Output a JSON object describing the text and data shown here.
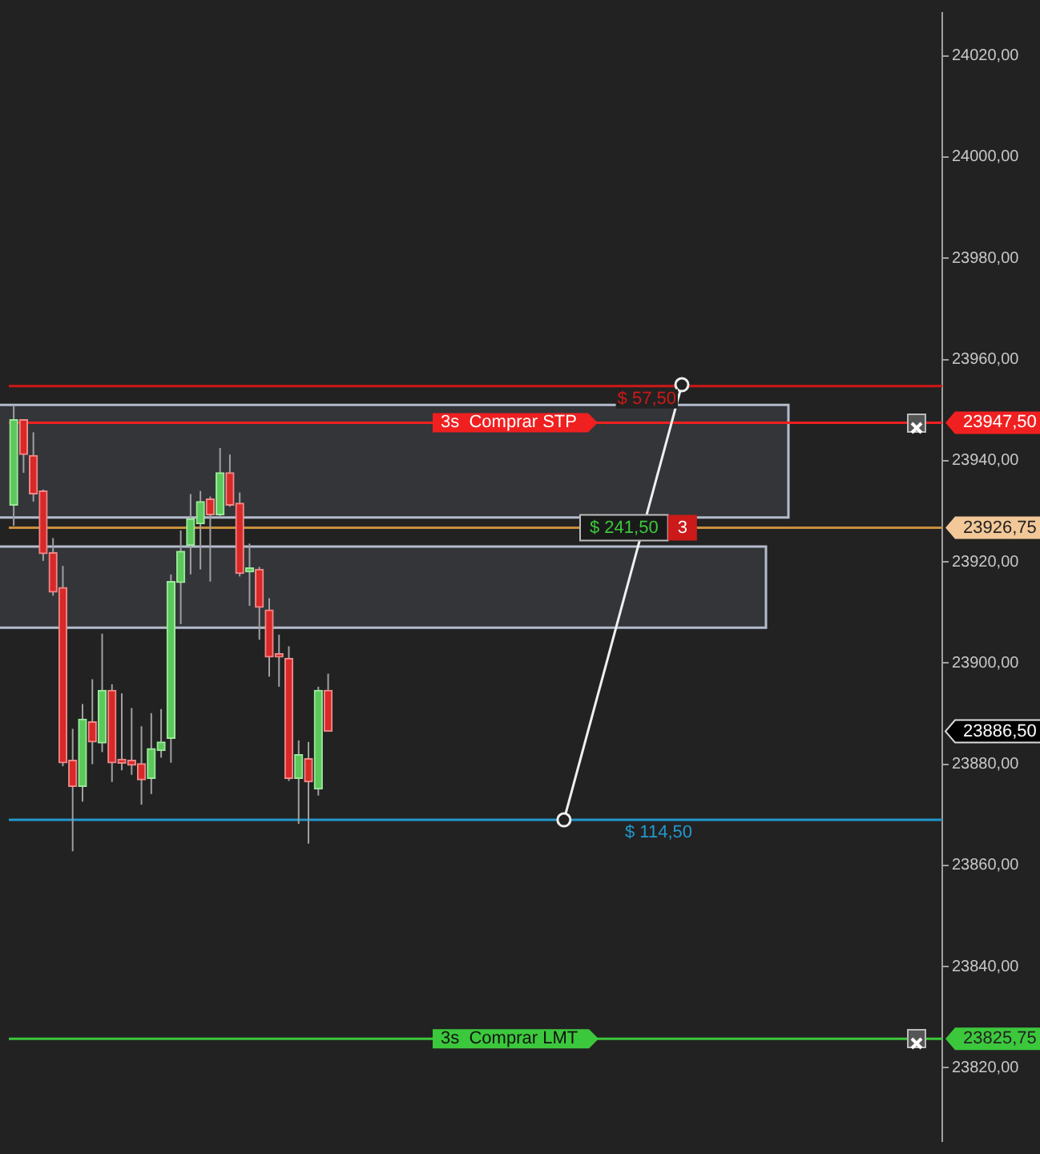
{
  "chart_data": {
    "type": "candlestick",
    "categories": [
      null,
      null,
      null,
      null,
      null,
      null,
      null,
      null,
      null,
      null,
      null,
      null,
      null,
      null,
      null,
      null,
      null,
      null,
      null,
      null,
      null,
      null,
      null,
      null,
      null,
      null,
      null,
      null,
      null,
      null,
      null,
      null,
      null,
      null,
      null,
      null,
      null,
      null,
      null,
      null,
      null,
      null,
      null,
      null,
      null,
      null,
      null,
      null,
      null,
      null,
      null,
      null,
      null,
      null,
      null,
      null,
      null,
      null,
      null,
      null,
      null,
      null,
      null,
      null,
      null,
      null,
      null,
      null,
      null,
      null,
      null,
      null,
      null,
      null,
      null,
      null,
      null,
      null,
      null,
      null,
      null,
      null,
      null,
      null,
      null,
      null,
      null,
      null,
      null,
      null,
      null,
      null,
      null,
      null,
      null
    ],
    "ohlc": [
      [
        23931.2,
        23951.0,
        23927.1,
        23948.1
      ],
      [
        23948.1,
        23948.1,
        23937.6,
        23941.2
      ],
      [
        23941.0,
        23945.6,
        23931.9,
        23933.4
      ],
      [
        23934.0,
        23934.3,
        23920.2,
        23921.6
      ],
      [
        23921.8,
        23924.7,
        23913.3,
        23914.0
      ],
      [
        23914.9,
        23919.2,
        23879.6,
        23880.3
      ],
      [
        23880.8,
        23887.0,
        23862.8,
        23875.6
      ],
      [
        23875.6,
        23891.9,
        23872.6,
        23888.9
      ],
      [
        23888.4,
        23896.8,
        23880.0,
        23884.4
      ],
      [
        23884.2,
        23905.8,
        23882.4,
        23894.6
      ],
      [
        23894.6,
        23895.8,
        23876.5,
        23880.3
      ],
      [
        23881.0,
        23894.0,
        23878.8,
        23880.2
      ],
      [
        23880.8,
        23891.1,
        23877.9,
        23879.8
      ],
      [
        23880.1,
        23887.5,
        23872.0,
        23876.9
      ],
      [
        23877.2,
        23890.1,
        23874.1,
        23883.1
      ],
      [
        23882.7,
        23890.9,
        23881.3,
        23884.4
      ],
      [
        23885.1,
        23917.5,
        23880.3,
        23916.1
      ],
      [
        23915.9,
        23926.2,
        23907.7,
        23922.1
      ],
      [
        23923.3,
        23933.4,
        23917.5,
        23928.5
      ],
      [
        23927.5,
        23934.0,
        23918.5,
        23931.9
      ],
      [
        23932.4,
        23932.9,
        23916.1,
        23929.3
      ],
      [
        23929.3,
        23942.5,
        23928.8,
        23937.6
      ],
      [
        23937.6,
        23941.2,
        23930.9,
        23931.2
      ],
      [
        23931.6,
        23933.7,
        23917.1,
        23917.7
      ],
      [
        23918.0,
        23923.6,
        23911.3,
        23918.8
      ],
      [
        23918.5,
        23919.0,
        23904.6,
        23911.0
      ],
      [
        23910.5,
        23912.8,
        23897.3,
        23901.2
      ],
      [
        23901.6,
        23905.6,
        23895.3,
        23901.2
      ],
      [
        23900.9,
        23903.3,
        23876.7,
        23877.2
      ],
      [
        23877.2,
        23884.7,
        23868.2,
        23881.9
      ],
      [
        23881.1,
        23884.4,
        23864.3,
        23876.5
      ],
      [
        23875.1,
        23895.3,
        23873.8,
        23894.6
      ],
      [
        23894.6,
        23897.9,
        23886.5,
        23886.5
      ],
      null,
      null,
      null,
      null,
      null,
      null,
      null,
      null,
      null,
      null,
      null,
      null,
      null,
      null,
      null,
      null,
      null,
      null,
      null,
      null,
      null,
      null,
      null,
      null,
      null,
      null,
      null,
      null,
      null,
      null,
      null,
      null,
      null,
      null,
      null,
      null,
      null,
      null,
      null,
      null,
      null,
      null,
      null,
      null,
      null,
      null,
      null,
      null,
      null,
      null,
      null,
      null,
      null,
      null,
      null,
      null,
      null,
      null,
      null,
      null,
      null,
      null
    ],
    "series": [
      {
        "type": "line",
        "color": "#f0f0f0",
        "marker": "circle",
        "values": [
          null,
          null,
          null,
          null,
          null,
          null,
          null,
          null,
          null,
          null,
          null,
          null,
          null,
          null,
          null,
          null,
          null,
          null,
          null,
          null,
          null,
          null,
          null,
          null,
          null,
          null,
          null,
          null,
          null,
          null,
          null,
          null,
          null,
          null,
          null,
          null,
          null,
          null,
          null,
          null,
          null,
          null,
          null,
          null,
          null,
          null,
          null,
          null,
          null,
          null,
          null,
          null,
          null,
          null,
          null,
          null,
          23869,
          null,
          null,
          null,
          null,
          null,
          null,
          null,
          null,
          null,
          null,
          null,
          23955,
          null,
          null,
          null,
          null,
          null,
          null,
          null,
          null,
          null,
          null,
          null,
          null,
          null,
          null,
          null,
          null,
          null,
          null,
          null,
          null,
          null,
          null,
          null,
          null,
          null,
          null
        ]
      }
    ],
    "ylim": [
      23805.5,
      24028.5
    ],
    "yticks": [
      {
        "value": 23820,
        "label": "23820,00"
      },
      {
        "value": 23840,
        "label": "23840,00"
      },
      {
        "value": 23860,
        "label": "23860,00"
      },
      {
        "value": 23880,
        "label": "23880,00"
      },
      {
        "value": 23900,
        "label": "23900,00"
      },
      {
        "value": 23920,
        "label": "23920,00"
      },
      {
        "value": 23940,
        "label": "23940,00"
      },
      {
        "value": 23960,
        "label": "23960,00"
      },
      {
        "value": 23980,
        "label": "23980,00"
      },
      {
        "value": 24000,
        "label": "24000,00"
      },
      {
        "value": 24020,
        "label": "24020,00"
      }
    ],
    "ref_lines": [
      {
        "axis": "y",
        "value": 23954.75,
        "color": "#d01818"
      },
      {
        "axis": "y",
        "value": 23947.5,
        "label": "3s  Comprar STP",
        "color": "#f02020"
      },
      {
        "axis": "y",
        "value": 23926.75,
        "color": "#c8903c"
      },
      {
        "axis": "y",
        "value": 23869,
        "color": "#2298cc"
      },
      {
        "axis": "y",
        "value": 23825.75,
        "label": "3s  Comprar LMT",
        "color": "#3cc83c"
      }
    ],
    "bands": [
      {
        "axis": "y",
        "from": 23928.75,
        "to": 23951,
        "color": "#3a3c42"
      },
      {
        "axis": "y",
        "from": 23907,
        "to": 23923,
        "color": "#3a3c42"
      }
    ],
    "annotations": [
      "$ 57,50",
      "$ 241,50",
      "3",
      "$ 114,50",
      "23947,50",
      "23926,75",
      "23886,50",
      "23825,75"
    ],
    "grid": false,
    "legend": false
  }
}
